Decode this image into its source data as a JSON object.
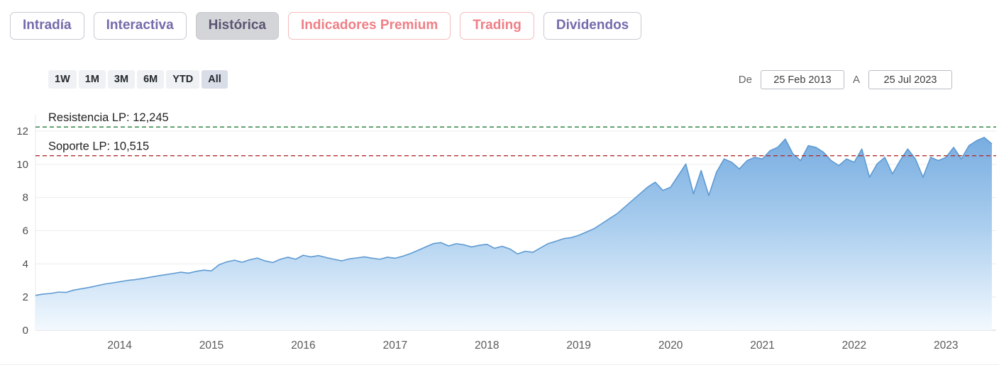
{
  "tabs": [
    {
      "label": "Intradía",
      "active": false,
      "color": "#756aab"
    },
    {
      "label": "Interactiva",
      "active": false,
      "color": "#756aab"
    },
    {
      "label": "Histórica",
      "active": true,
      "color": "#5b5472"
    },
    {
      "label": "Indicadores Premium",
      "active": false,
      "color": "#ef7f86"
    },
    {
      "label": "Trading",
      "active": false,
      "color": "#ef7f86"
    },
    {
      "label": "Dividendos",
      "active": false,
      "color": "#756aab"
    }
  ],
  "range_selector": {
    "options": [
      "1W",
      "1M",
      "3M",
      "6M",
      "YTD",
      "All"
    ],
    "active": "All"
  },
  "date_filter": {
    "from_label": "De",
    "from_value": "25 Feb 2013",
    "to_label": "A",
    "to_value": "25 Jul 2023"
  },
  "chart_data": {
    "type": "area",
    "title": "",
    "xlabel": "",
    "ylabel": "",
    "x_start_label": "Feb 2013",
    "x_end_label": "Jul 2023",
    "x_start": 2013.0833,
    "x_step": 0.0833333,
    "values": [
      2.1,
      2.18,
      2.22,
      2.3,
      2.28,
      2.42,
      2.5,
      2.58,
      2.68,
      2.78,
      2.85,
      2.92,
      3.0,
      3.05,
      3.12,
      3.2,
      3.28,
      3.35,
      3.42,
      3.5,
      3.44,
      3.55,
      3.62,
      3.58,
      3.95,
      4.12,
      4.22,
      4.1,
      4.25,
      4.35,
      4.18,
      4.08,
      4.28,
      4.4,
      4.28,
      4.52,
      4.42,
      4.5,
      4.38,
      4.28,
      4.18,
      4.3,
      4.36,
      4.42,
      4.34,
      4.28,
      4.4,
      4.34,
      4.46,
      4.62,
      4.82,
      5.02,
      5.22,
      5.28,
      5.08,
      5.22,
      5.15,
      5.02,
      5.12,
      5.18,
      4.94,
      5.06,
      4.9,
      4.6,
      4.76,
      4.7,
      4.96,
      5.22,
      5.36,
      5.52,
      5.58,
      5.72,
      5.92,
      6.12,
      6.42,
      6.72,
      7.02,
      7.42,
      7.82,
      8.22,
      8.62,
      8.92,
      8.42,
      8.62,
      9.32,
      10.02,
      8.22,
      9.62,
      8.12,
      9.52,
      10.32,
      10.12,
      9.72,
      10.22,
      10.42,
      10.32,
      10.82,
      11.02,
      11.52,
      10.62,
      10.22,
      11.12,
      11.02,
      10.72,
      10.22,
      9.92,
      10.32,
      10.12,
      10.92,
      9.22,
      10.02,
      10.42,
      9.42,
      10.22,
      10.92,
      10.32,
      9.22,
      10.42,
      10.22,
      10.42,
      11.02,
      10.32,
      11.12,
      11.42,
      11.62,
      11.22
    ],
    "ylim": [
      0,
      13
    ],
    "yticks": [
      0,
      2,
      4,
      6,
      8,
      10,
      12
    ],
    "xticks": [
      2014,
      2015,
      2016,
      2017,
      2018,
      2019,
      2020,
      2021,
      2022,
      2023
    ],
    "grid": "horizontal",
    "legend": "none",
    "line_color": "#5e9ad2",
    "area_top_color": "#78ade0",
    "area_mid_color": "#a9cdee",
    "area_bottom_color": "#f3f9fe",
    "annotations": [
      {
        "name": "resistencia-lp",
        "label": "Resistencia LP: 12,245",
        "value": 12.245,
        "color": "#1e7a34",
        "line_style": "dashed"
      },
      {
        "name": "soporte-lp",
        "label": "Soporte LP: 10,515",
        "value": 10.515,
        "color": "#b03030",
        "line_style": "dashed"
      }
    ]
  }
}
